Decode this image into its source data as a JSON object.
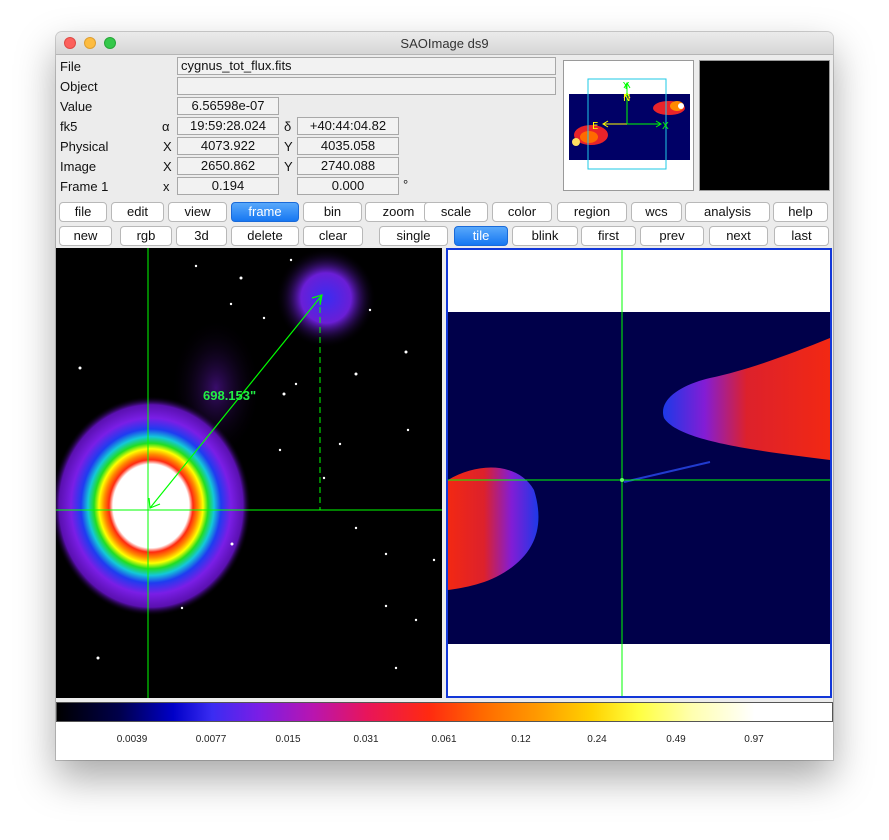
{
  "window": {
    "title": "SAOImage ds9"
  },
  "info": {
    "file_label": "File",
    "file_value": "cygnus_tot_flux.fits",
    "object_label": "Object",
    "object_value": "",
    "value_label": "Value",
    "value_value": "6.56598e-07",
    "wcs_label": "fk5",
    "alpha_sym": "α",
    "alpha_value": "19:59:28.024",
    "delta_sym": "δ",
    "delta_value": "+40:44:04.82",
    "physical_label": "Physical",
    "physical_x_sym": "X",
    "physical_x": "4073.922",
    "physical_y_sym": "Y",
    "physical_y": "4035.058",
    "image_label": "Image",
    "image_x_sym": "X",
    "image_x": "2650.862",
    "image_y_sym": "Y",
    "image_y": "2740.088",
    "frame_label": "Frame 1",
    "frame_x_sym": "x",
    "frame_zoom": "0.194",
    "frame_angle": "0.000",
    "degree_sym": "°"
  },
  "panner": {
    "north_label": "N",
    "east_label": "E",
    "x_label": "X",
    "y_label": "Y"
  },
  "main_buttons": [
    "file",
    "edit",
    "view",
    "frame",
    "bin",
    "zoom",
    "scale",
    "color",
    "region",
    "wcs",
    "analysis",
    "help"
  ],
  "frame_buttons": [
    "new",
    "rgb",
    "3d",
    "delete",
    "clear",
    "single",
    "tile",
    "blink",
    "first",
    "prev",
    "next",
    "last"
  ],
  "active": {
    "main": "frame",
    "frame": "tile"
  },
  "region": {
    "distance_label": "698.153\""
  },
  "colorbar": {
    "colormap": "heat/rainbow",
    "ticks": [
      "0.0039",
      "0.0077",
      "0.015",
      "0.031",
      "0.061",
      "0.12",
      "0.24",
      "0.49",
      "0.97"
    ]
  },
  "colors": {
    "accent": "#1677f2",
    "crosshair": "#00ff00",
    "frame_border": "#1237d8"
  }
}
